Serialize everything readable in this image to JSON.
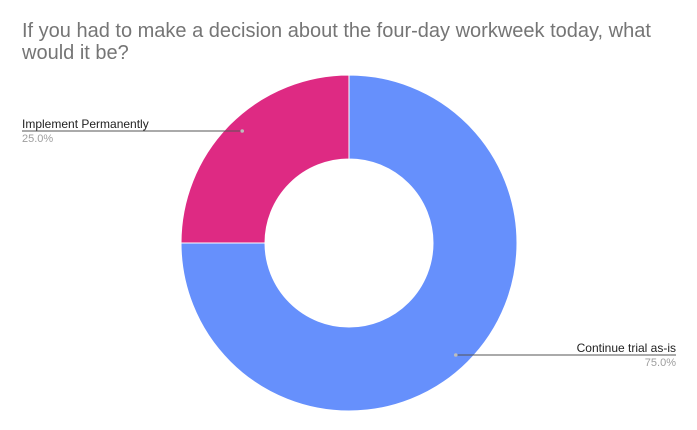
{
  "chart_data": {
    "type": "pie",
    "donut": true,
    "title": "If you had to make a decision about the four-day workweek today, what would it be?",
    "slices": [
      {
        "label": "Implement Permanently",
        "value": 25.0,
        "percent_label": "25.0%",
        "color": "#de2a83"
      },
      {
        "label": "Continue trial as-is",
        "value": 75.0,
        "percent_label": "75.0%",
        "color": "#6690fc"
      }
    ],
    "legend": "labeled-slices"
  }
}
